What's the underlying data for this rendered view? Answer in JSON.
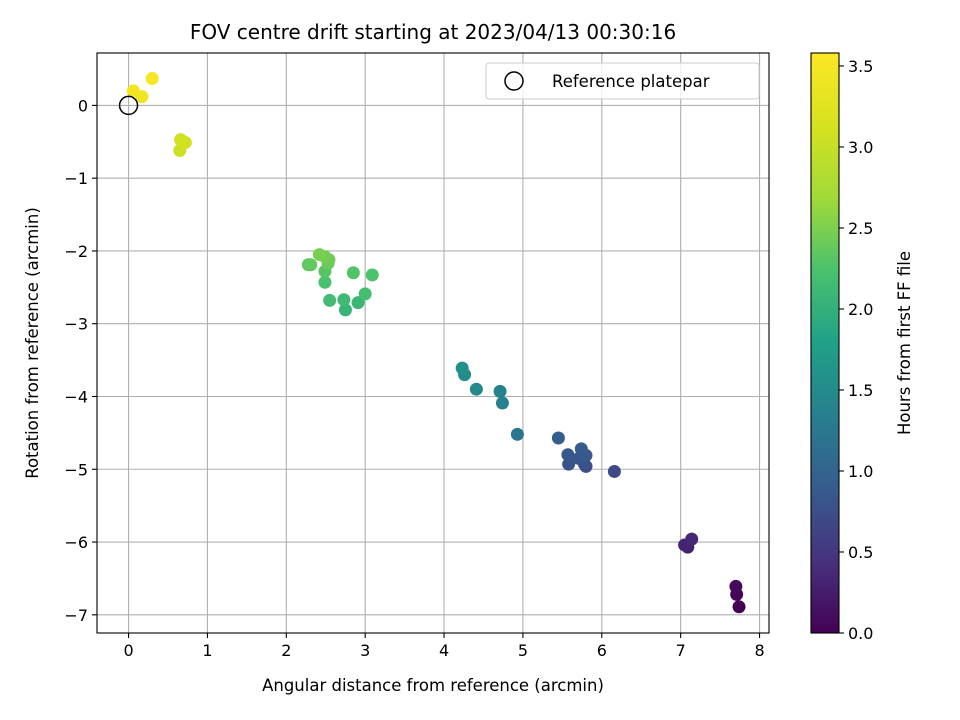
{
  "chart_data": {
    "type": "scatter",
    "title": "FOV centre drift starting at 2023/04/13 00:30:16",
    "xlabel": "Angular distance from reference (arcmin)",
    "ylabel": "Rotation from reference (arcmin)",
    "xlim": [
      -0.4,
      8.12
    ],
    "ylim": [
      -7.25,
      0.72
    ],
    "xticks": [
      0,
      1,
      2,
      3,
      4,
      5,
      6,
      7,
      8
    ],
    "yticks": [
      0,
      -1,
      -2,
      -3,
      -4,
      -5,
      -6,
      -7
    ],
    "xtick_labels": [
      "0",
      "1",
      "2",
      "3",
      "4",
      "5",
      "6",
      "7",
      "8"
    ],
    "ytick_labels": [
      "0",
      "−1",
      "−2",
      "−3",
      "−4",
      "−5",
      "−6",
      "−7"
    ],
    "grid": true,
    "colormap": "viridis",
    "colorbar": {
      "label": "Hours from first FF file",
      "range": [
        0,
        3.58
      ],
      "ticks": [
        0.0,
        0.5,
        1.0,
        1.5,
        2.0,
        2.5,
        3.0,
        3.5
      ],
      "tick_labels": [
        "0.0",
        "0.5",
        "1.0",
        "1.5",
        "2.0",
        "2.5",
        "3.0",
        "3.5"
      ]
    },
    "reference": {
      "label": "Reference platepar",
      "x": 0.0,
      "y": 0.0
    },
    "legend_position": "top-right",
    "points": [
      {
        "x": 7.74,
        "y": -6.89,
        "c": 0.0
      },
      {
        "x": 7.71,
        "y": -6.72,
        "c": 0.04
      },
      {
        "x": 7.7,
        "y": -6.61,
        "c": 0.08
      },
      {
        "x": 7.09,
        "y": -6.07,
        "c": 0.3
      },
      {
        "x": 7.05,
        "y": -6.04,
        "c": 0.33
      },
      {
        "x": 7.14,
        "y": -5.96,
        "c": 0.36
      },
      {
        "x": 6.16,
        "y": -5.03,
        "c": 0.7
      },
      {
        "x": 5.8,
        "y": -4.96,
        "c": 0.74
      },
      {
        "x": 5.78,
        "y": -4.93,
        "c": 0.77
      },
      {
        "x": 5.58,
        "y": -4.93,
        "c": 0.8
      },
      {
        "x": 5.71,
        "y": -4.85,
        "c": 0.82
      },
      {
        "x": 5.57,
        "y": -4.8,
        "c": 0.84
      },
      {
        "x": 5.8,
        "y": -4.81,
        "c": 0.86
      },
      {
        "x": 5.74,
        "y": -4.72,
        "c": 0.88
      },
      {
        "x": 5.45,
        "y": -4.57,
        "c": 0.92
      },
      {
        "x": 4.93,
        "y": -4.52,
        "c": 1.22
      },
      {
        "x": 4.74,
        "y": -4.09,
        "c": 1.36
      },
      {
        "x": 4.71,
        "y": -3.93,
        "c": 1.4
      },
      {
        "x": 4.41,
        "y": -3.9,
        "c": 1.47
      },
      {
        "x": 4.26,
        "y": -3.7,
        "c": 1.52
      },
      {
        "x": 4.23,
        "y": -3.61,
        "c": 1.56
      },
      {
        "x": 2.75,
        "y": -2.81,
        "c": 2.06
      },
      {
        "x": 2.91,
        "y": -2.71,
        "c": 2.09
      },
      {
        "x": 2.73,
        "y": -2.67,
        "c": 2.12
      },
      {
        "x": 2.55,
        "y": -2.68,
        "c": 2.16
      },
      {
        "x": 3.0,
        "y": -2.59,
        "c": 2.19
      },
      {
        "x": 2.49,
        "y": -2.43,
        "c": 2.22
      },
      {
        "x": 3.09,
        "y": -2.33,
        "c": 2.25
      },
      {
        "x": 2.85,
        "y": -2.3,
        "c": 2.28
      },
      {
        "x": 2.49,
        "y": -2.28,
        "c": 2.31
      },
      {
        "x": 2.28,
        "y": -2.19,
        "c": 2.33
      },
      {
        "x": 2.31,
        "y": -2.19,
        "c": 2.36
      },
      {
        "x": 2.53,
        "y": -2.17,
        "c": 2.39
      },
      {
        "x": 2.54,
        "y": -2.12,
        "c": 2.42
      },
      {
        "x": 2.49,
        "y": -2.08,
        "c": 2.45
      },
      {
        "x": 2.42,
        "y": -2.05,
        "c": 2.48
      },
      {
        "x": 0.65,
        "y": -0.62,
        "c": 3.05
      },
      {
        "x": 0.72,
        "y": -0.51,
        "c": 3.08
      },
      {
        "x": 0.66,
        "y": -0.47,
        "c": 3.11
      },
      {
        "x": 0.17,
        "y": 0.12,
        "c": 3.42
      },
      {
        "x": 0.06,
        "y": 0.2,
        "c": 3.45
      },
      {
        "x": 0.3,
        "y": 0.37,
        "c": 3.52
      }
    ]
  }
}
